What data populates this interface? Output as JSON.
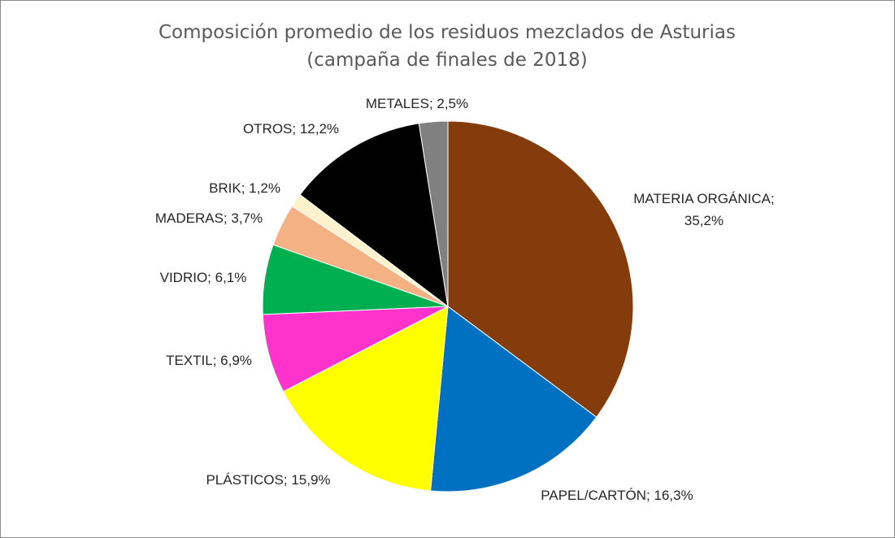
{
  "chart_data": {
    "type": "pie",
    "title": "Composición promedio de los residuos mezclados de Asturias",
    "subtitle": "(campaña de finales de 2018)",
    "start_angle_deg": 0,
    "direction": "clockwise",
    "legend": "none",
    "slices": [
      {
        "name": "MATERIA ORGÁNICA",
        "value": 35.2,
        "color": "#843c0c",
        "label": "MATERIA ORGÁNICA;",
        "label2": "35,2%"
      },
      {
        "name": "PAPEL/CARTÓN",
        "value": 16.3,
        "color": "#0070c0",
        "label": "PAPEL/CARTÓN; 16,3%"
      },
      {
        "name": "PLÁSTICOS",
        "value": 15.9,
        "color": "#ffff00",
        "label": "PLÁSTICOS; 15,9%"
      },
      {
        "name": "TEXTIL",
        "value": 6.9,
        "color": "#ff33cc",
        "label": "TEXTIL; 6,9%"
      },
      {
        "name": "VIDRIO",
        "value": 6.1,
        "color": "#00b050",
        "label": "VIDRIO; 6,1%"
      },
      {
        "name": "MADERAS",
        "value": 3.7,
        "color": "#f4b183",
        "label": "MADERAS; 3,7%"
      },
      {
        "name": "BRIK",
        "value": 1.2,
        "color": "#fff2cc",
        "label": "BRIK; 1,2%"
      },
      {
        "name": "OTROS",
        "value": 12.2,
        "color": "#000000",
        "label": "OTROS; 12,2%"
      },
      {
        "name": "METALES",
        "value": 2.5,
        "color": "#808080",
        "label": "METALES; 2,5%"
      }
    ]
  }
}
